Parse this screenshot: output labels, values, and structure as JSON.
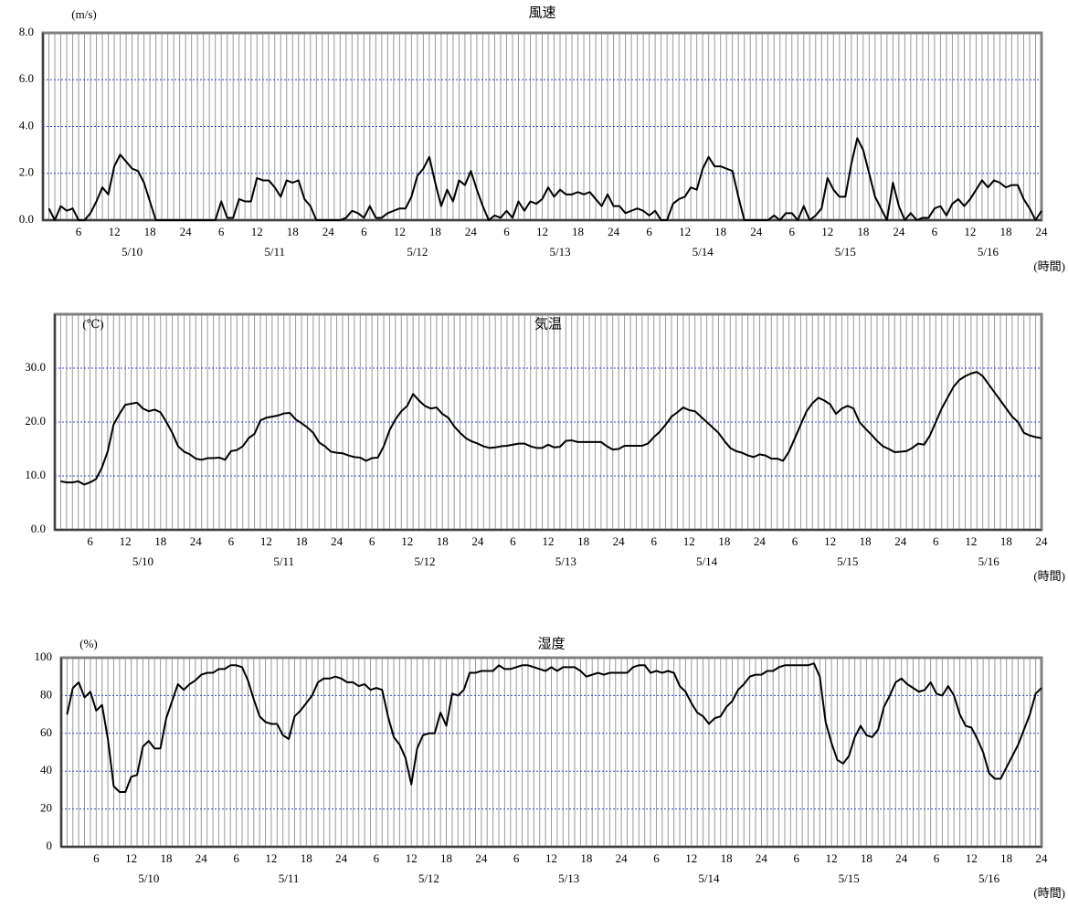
{
  "chart_data": [
    {
      "type": "line",
      "title": "風速",
      "y_unit": "(m/s)",
      "x_unit": "(時間)",
      "color": "#000000",
      "grid": true,
      "dates": [
        "5/10",
        "5/11",
        "5/12",
        "5/13",
        "5/14",
        "5/15",
        "5/16"
      ],
      "categories": [
        null,
        null,
        null,
        null,
        null,
        "6",
        null,
        null,
        null,
        null,
        null,
        "12",
        null,
        null,
        null,
        null,
        null,
        "18",
        null,
        null,
        null,
        null,
        null,
        "24",
        null,
        null,
        null,
        null,
        null,
        "6",
        null,
        null,
        null,
        null,
        null,
        "12",
        null,
        null,
        null,
        null,
        null,
        "18",
        null,
        null,
        null,
        null,
        null,
        "24",
        null,
        null,
        null,
        null,
        null,
        "6",
        null,
        null,
        null,
        null,
        null,
        "12",
        null,
        null,
        null,
        null,
        null,
        "18",
        null,
        null,
        null,
        null,
        null,
        "24",
        null,
        null,
        null,
        null,
        null,
        "6",
        null,
        null,
        null,
        null,
        null,
        "12",
        null,
        null,
        null,
        null,
        null,
        "18",
        null,
        null,
        null,
        null,
        null,
        "24",
        null,
        null,
        null,
        null,
        null,
        "6",
        null,
        null,
        null,
        null,
        null,
        "12",
        null,
        null,
        null,
        null,
        null,
        "18",
        null,
        null,
        null,
        null,
        null,
        "24",
        null,
        null,
        null,
        null,
        null,
        "6",
        null,
        null,
        null,
        null,
        null,
        "12",
        null,
        null,
        null,
        null,
        null,
        "18",
        null,
        null,
        null,
        null,
        null,
        "24",
        null,
        null,
        null,
        null,
        null,
        "6",
        null,
        null,
        null,
        null,
        null,
        "12",
        null,
        null,
        null,
        null,
        null,
        "18",
        null,
        null,
        null,
        null,
        null,
        "24"
      ],
      "values": [
        0.5,
        0,
        0.6,
        0.4,
        0.5,
        0,
        0,
        0.3,
        0.8,
        1.4,
        1.1,
        2.3,
        2.8,
        2.5,
        2.2,
        2.1,
        1.6,
        0.8,
        0,
        0,
        0,
        0,
        0,
        0,
        0,
        0,
        0,
        0,
        0,
        0.8,
        0.1,
        0.1,
        0.9,
        0.8,
        0.8,
        1.8,
        1.7,
        1.7,
        1.4,
        1.0,
        1.7,
        1.6,
        1.7,
        0.9,
        0.6,
        0,
        0,
        0,
        0,
        0,
        0.1,
        0.4,
        0.3,
        0.1,
        0.6,
        0.1,
        0.1,
        0.3,
        0.4,
        0.5,
        0.5,
        1.0,
        1.9,
        2.2,
        2.7,
        1.6,
        0.6,
        1.3,
        0.8,
        1.7,
        1.5,
        2.1,
        1.3,
        0.6,
        0,
        0.2,
        0.1,
        0.4,
        0.1,
        0.8,
        0.4,
        0.8,
        0.7,
        0.9,
        1.4,
        1.0,
        1.3,
        1.1,
        1.1,
        1.2,
        1.1,
        1.2,
        0.9,
        0.6,
        1.1,
        0.6,
        0.6,
        0.3,
        0.4,
        0.5,
        0.4,
        0.2,
        0.4,
        0,
        0,
        0.7,
        0.9,
        1.0,
        1.4,
        1.3,
        2.2,
        2.7,
        2.3,
        2.3,
        2.2,
        2.1,
        1.0,
        0,
        0,
        0,
        0,
        0,
        0.2,
        0,
        0.3,
        0.3,
        0,
        0.6,
        0,
        0.2,
        0.5,
        1.8,
        1.3,
        1.0,
        1.0,
        2.4,
        3.5,
        3.0,
        2.0,
        1.0,
        0.5,
        0,
        1.6,
        0.6,
        0,
        0.3,
        0,
        0.1,
        0.1,
        0.5,
        0.6,
        0.2,
        0.7,
        0.9,
        0.6,
        0.9,
        1.3,
        1.7,
        1.4,
        1.7,
        1.6,
        1.4,
        1.5,
        1.5,
        0.9,
        0.5,
        0,
        0.4
      ],
      "ylim": [
        0,
        8
      ],
      "yticks": [
        {
          "value": 0,
          "label": "0.0"
        },
        {
          "value": 2,
          "label": "2.0"
        },
        {
          "value": 4,
          "label": "4.0"
        },
        {
          "value": 6,
          "label": "6.0"
        },
        {
          "value": 8,
          "label": "8.0"
        }
      ]
    },
    {
      "type": "line",
      "title": "気温",
      "y_unit": "(℃)",
      "x_unit": "(時間)",
      "color": "#000000",
      "grid": true,
      "dates": [
        "5/10",
        "5/11",
        "5/12",
        "5/13",
        "5/14",
        "5/15",
        "5/16"
      ],
      "categories": [
        null,
        null,
        null,
        null,
        null,
        "6",
        null,
        null,
        null,
        null,
        null,
        "12",
        null,
        null,
        null,
        null,
        null,
        "18",
        null,
        null,
        null,
        null,
        null,
        "24",
        null,
        null,
        null,
        null,
        null,
        "6",
        null,
        null,
        null,
        null,
        null,
        "12",
        null,
        null,
        null,
        null,
        null,
        "18",
        null,
        null,
        null,
        null,
        null,
        "24",
        null,
        null,
        null,
        null,
        null,
        "6",
        null,
        null,
        null,
        null,
        null,
        "12",
        null,
        null,
        null,
        null,
        null,
        "18",
        null,
        null,
        null,
        null,
        null,
        "24",
        null,
        null,
        null,
        null,
        null,
        "6",
        null,
        null,
        null,
        null,
        null,
        "12",
        null,
        null,
        null,
        null,
        null,
        "18",
        null,
        null,
        null,
        null,
        null,
        "24",
        null,
        null,
        null,
        null,
        null,
        "6",
        null,
        null,
        null,
        null,
        null,
        "12",
        null,
        null,
        null,
        null,
        null,
        "18",
        null,
        null,
        null,
        null,
        null,
        "24",
        null,
        null,
        null,
        null,
        null,
        "6",
        null,
        null,
        null,
        null,
        null,
        "12",
        null,
        null,
        null,
        null,
        null,
        "18",
        null,
        null,
        null,
        null,
        null,
        "24",
        null,
        null,
        null,
        null,
        null,
        "6",
        null,
        null,
        null,
        null,
        null,
        "12",
        null,
        null,
        null,
        null,
        null,
        "18",
        null,
        null,
        null,
        null,
        null,
        "24"
      ],
      "values": [
        9.0,
        8.8,
        8.8,
        9.0,
        8.4,
        8.8,
        9.4,
        11.5,
        14.5,
        19.5,
        21.5,
        23.2,
        23.4,
        23.6,
        22.5,
        22.0,
        22.3,
        21.8,
        20.0,
        18.0,
        15.5,
        14.5,
        14.0,
        13.2,
        13.0,
        13.3,
        13.3,
        13.4,
        13.0,
        14.6,
        14.8,
        15.5,
        17.0,
        17.8,
        20.3,
        20.8,
        21.0,
        21.2,
        21.6,
        21.7,
        20.5,
        19.8,
        19.0,
        18.0,
        16.2,
        15.5,
        14.5,
        14.3,
        14.2,
        13.8,
        13.5,
        13.4,
        12.8,
        13.3,
        13.4,
        15.5,
        18.5,
        20.5,
        22.0,
        23.0,
        25.2,
        24.0,
        23.0,
        22.5,
        22.7,
        21.5,
        20.8,
        19.2,
        18.0,
        17.0,
        16.4,
        16.0,
        15.5,
        15.2,
        15.3,
        15.5,
        15.6,
        15.8,
        16.0,
        16.0,
        15.5,
        15.2,
        15.2,
        15.8,
        15.3,
        15.4,
        16.5,
        16.6,
        16.3,
        16.3,
        16.3,
        16.3,
        16.3,
        15.5,
        14.9,
        15.0,
        15.6,
        15.6,
        15.6,
        15.6,
        16.0,
        17.2,
        18.2,
        19.5,
        21.0,
        21.8,
        22.7,
        22.2,
        22.0,
        21.0,
        20.0,
        19.0,
        18.0,
        16.5,
        15.2,
        14.6,
        14.3,
        13.8,
        13.5,
        14.0,
        13.8,
        13.2,
        13.2,
        12.8,
        14.5,
        17.0,
        19.5,
        22.0,
        23.5,
        24.5,
        24.0,
        23.3,
        21.5,
        22.5,
        23.0,
        22.5,
        20.0,
        18.8,
        17.7,
        16.5,
        15.5,
        15.0,
        14.4,
        14.5,
        14.6,
        15.2,
        16.0,
        15.8,
        17.5,
        20.0,
        22.5,
        24.5,
        26.5,
        27.8,
        28.5,
        29.0,
        29.3,
        28.5,
        27.0,
        25.5,
        24.0,
        22.5,
        21.0,
        20.0,
        18.0,
        17.5,
        17.2,
        17.0
      ],
      "ylim": [
        0,
        40
      ],
      "yticks": [
        {
          "value": 0,
          "label": "0.0"
        },
        {
          "value": 10,
          "label": "10.0"
        },
        {
          "value": 20,
          "label": "20.0"
        },
        {
          "value": 30,
          "label": "30.0"
        }
      ]
    },
    {
      "type": "line",
      "title": "湿度",
      "y_unit": "(%)",
      "x_unit": "(時間)",
      "color": "#000000",
      "grid": true,
      "dates": [
        "5/10",
        "5/11",
        "5/12",
        "5/13",
        "5/14",
        "5/15",
        "5/16"
      ],
      "categories": [
        null,
        null,
        null,
        null,
        null,
        "6",
        null,
        null,
        null,
        null,
        null,
        "12",
        null,
        null,
        null,
        null,
        null,
        "18",
        null,
        null,
        null,
        null,
        null,
        "24",
        null,
        null,
        null,
        null,
        null,
        "6",
        null,
        null,
        null,
        null,
        null,
        "12",
        null,
        null,
        null,
        null,
        null,
        "18",
        null,
        null,
        null,
        null,
        null,
        "24",
        null,
        null,
        null,
        null,
        null,
        "6",
        null,
        null,
        null,
        null,
        null,
        "12",
        null,
        null,
        null,
        null,
        null,
        "18",
        null,
        null,
        null,
        null,
        null,
        "24",
        null,
        null,
        null,
        null,
        null,
        "6",
        null,
        null,
        null,
        null,
        null,
        "12",
        null,
        null,
        null,
        null,
        null,
        "18",
        null,
        null,
        null,
        null,
        null,
        "24",
        null,
        null,
        null,
        null,
        null,
        "6",
        null,
        null,
        null,
        null,
        null,
        "12",
        null,
        null,
        null,
        null,
        null,
        "18",
        null,
        null,
        null,
        null,
        null,
        "24",
        null,
        null,
        null,
        null,
        null,
        "6",
        null,
        null,
        null,
        null,
        null,
        "12",
        null,
        null,
        null,
        null,
        null,
        "18",
        null,
        null,
        null,
        null,
        null,
        "24",
        null,
        null,
        null,
        null,
        null,
        "6",
        null,
        null,
        null,
        null,
        null,
        "12",
        null,
        null,
        null,
        null,
        null,
        "18",
        null,
        null,
        null,
        null,
        null,
        "24"
      ],
      "values": [
        70,
        84,
        87,
        79,
        82,
        72,
        75,
        57,
        32,
        29,
        29,
        37,
        38,
        53,
        56,
        52,
        52,
        68,
        77,
        86,
        83,
        86,
        88,
        91,
        92,
        92,
        94,
        94,
        96,
        96,
        95,
        88,
        78,
        69,
        66,
        65,
        65,
        59,
        57,
        69,
        72,
        76,
        80,
        87,
        89,
        89,
        90,
        89,
        87,
        87,
        85,
        86,
        83,
        84,
        83,
        69,
        58,
        54,
        47,
        33,
        52,
        59,
        60,
        60,
        71,
        64,
        81,
        80,
        83,
        92,
        92,
        93,
        93,
        93,
        96,
        94,
        94,
        95,
        96,
        96,
        95,
        94,
        93,
        95,
        93,
        95,
        95,
        95,
        93,
        90,
        91,
        92,
        91,
        92,
        92,
        92,
        92,
        95,
        96,
        96,
        92,
        93,
        92,
        93,
        92,
        85,
        82,
        76,
        71,
        69,
        65,
        68,
        69,
        74,
        77,
        83,
        86,
        90,
        91,
        91,
        93,
        93,
        95,
        96,
        96,
        96,
        96,
        96,
        97,
        90,
        66,
        55,
        46,
        44,
        48,
        58,
        64,
        59,
        58,
        62,
        74,
        80,
        87,
        89,
        86,
        84,
        82,
        83,
        87,
        81,
        80,
        85,
        80,
        70,
        64,
        63,
        57,
        50,
        39,
        36,
        36,
        42,
        48,
        54,
        62,
        70,
        81,
        84
      ],
      "ylim": [
        0,
        100
      ],
      "yticks": [
        0,
        20,
        40,
        60,
        80,
        100
      ]
    }
  ]
}
